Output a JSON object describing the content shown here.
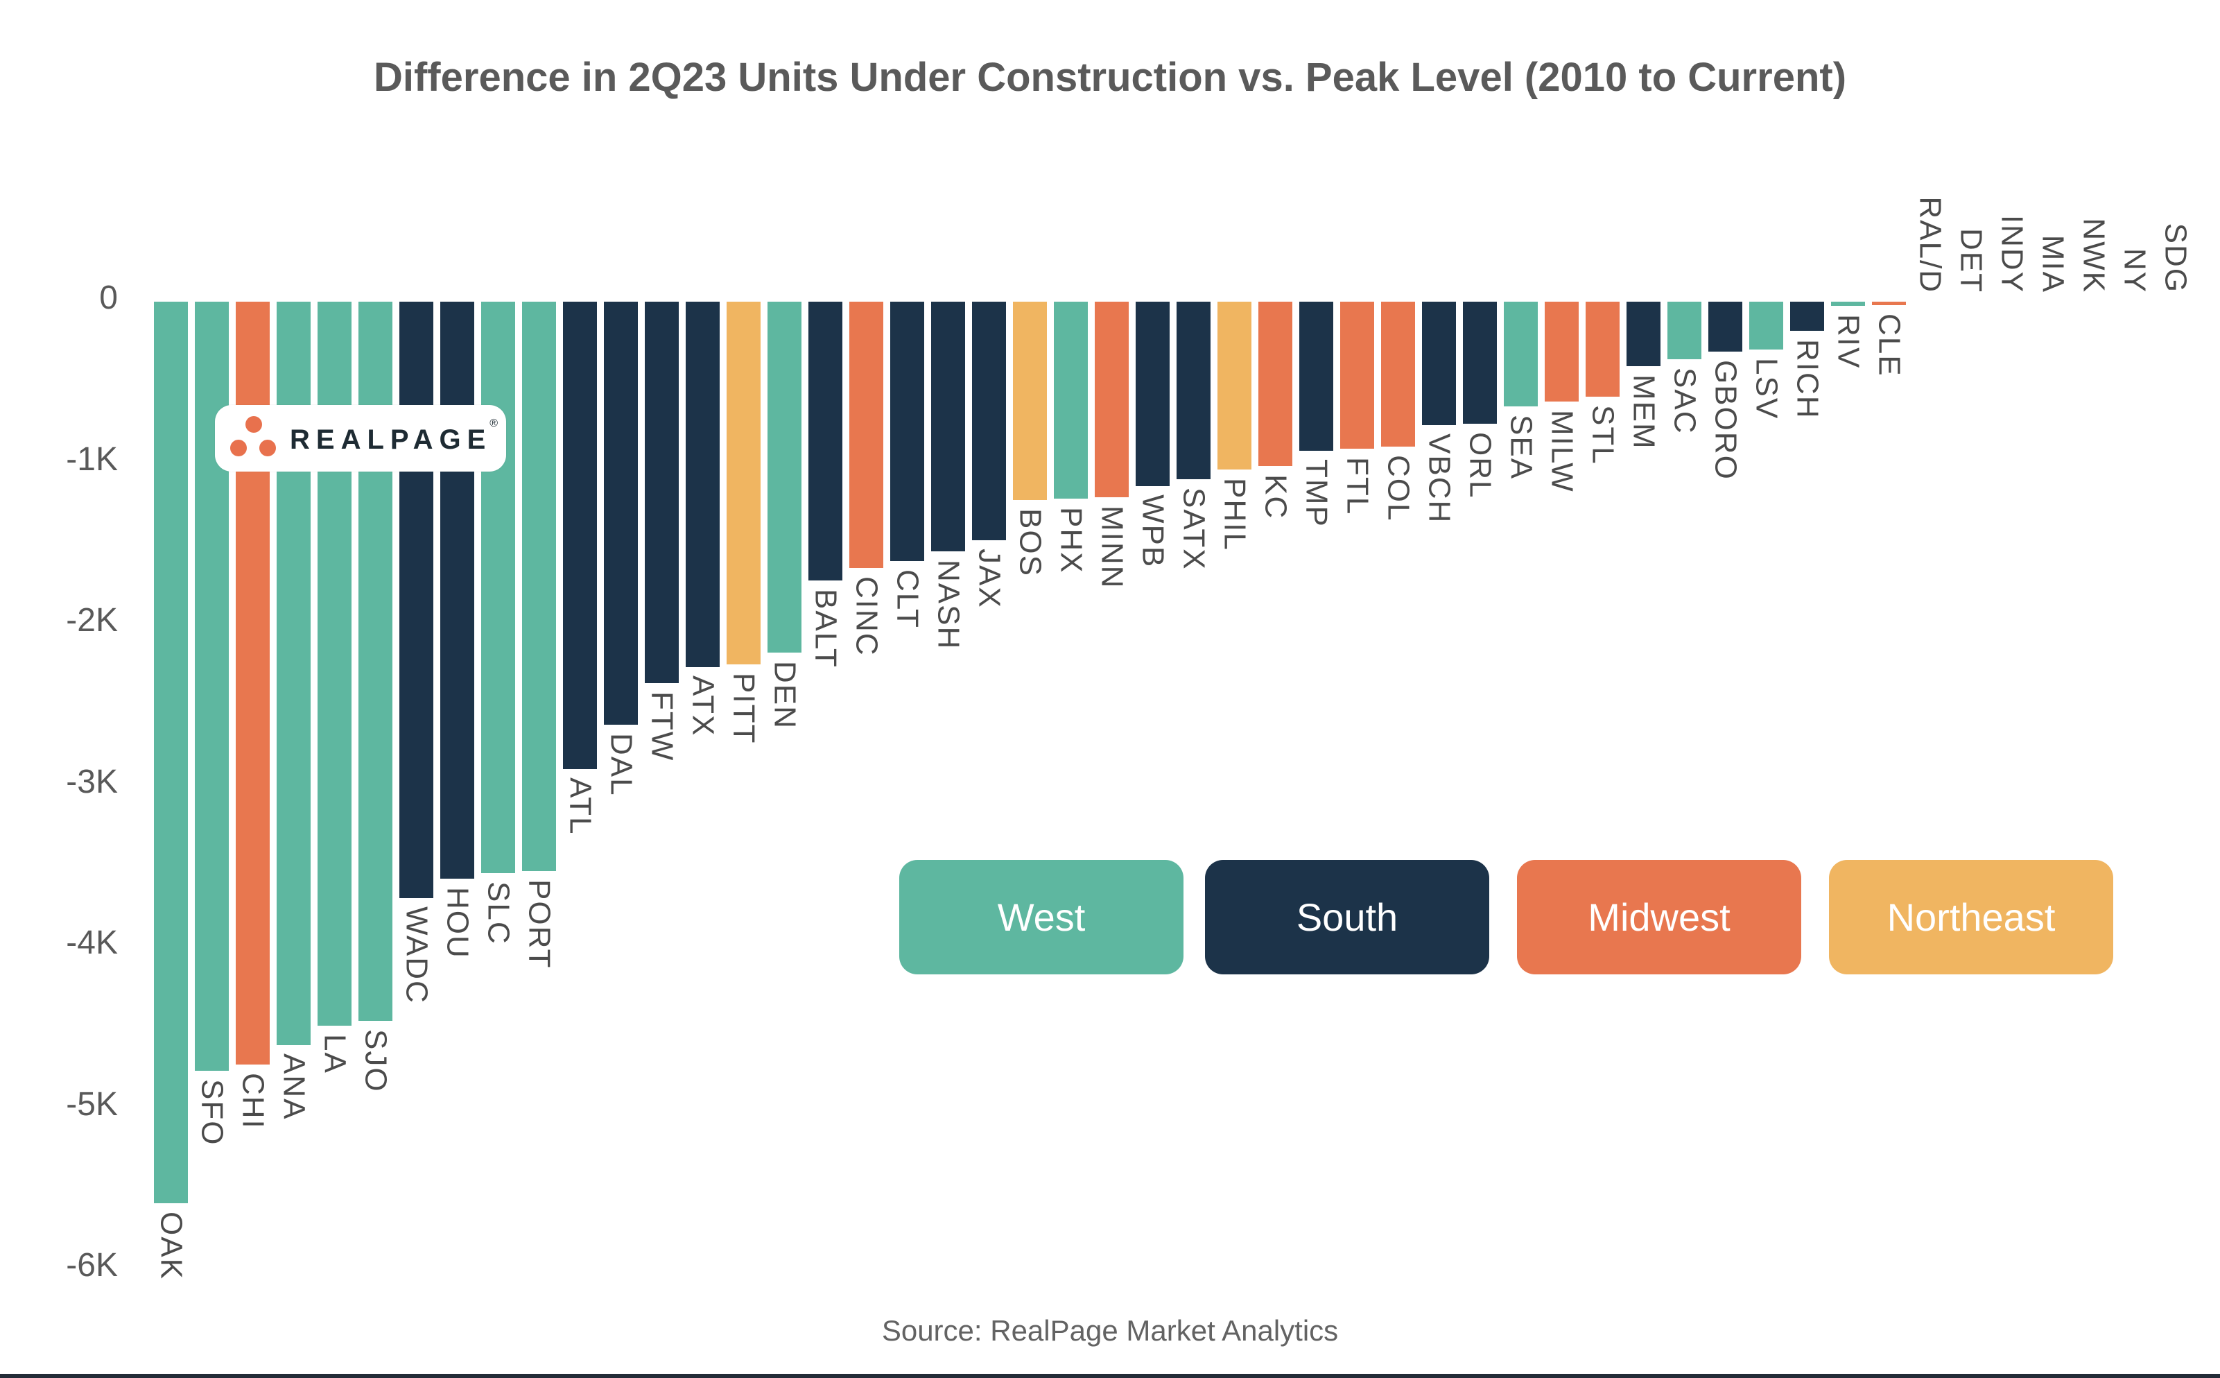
{
  "title": "Difference in 2Q23 Units Under Construction vs. Peak Level (2010 to Current)",
  "source": {
    "text": "Source: RealPage Market Analytics"
  },
  "watermark": {
    "brand": "REALPAGE",
    "reg": "®"
  },
  "y_axis": {
    "ticks": [
      "0",
      "-1K",
      "-2K",
      "-3K",
      "-4K",
      "-5K",
      "-6K"
    ],
    "tick_values": [
      0,
      -1000,
      -2000,
      -3000,
      -4000,
      -5000,
      -6000
    ]
  },
  "legend": {
    "items": [
      {
        "label": "West",
        "color": "#5EB7A0"
      },
      {
        "label": "South",
        "color": "#1C3349"
      },
      {
        "label": "Midwest",
        "color": "#E8774F"
      },
      {
        "label": "Northeast",
        "color": "#F0B561"
      }
    ]
  },
  "chart_data": {
    "type": "bar",
    "title": "Difference in 2Q23 Units Under Construction vs. Peak Level (2010 to Current)",
    "xlabel": "",
    "ylabel": "",
    "ylim": [
      -6200,
      0
    ],
    "grid": false,
    "legend_position": "center-right",
    "region_colors": {
      "West": "#5EB7A0",
      "South": "#1C3349",
      "Midwest": "#E8774F",
      "Northeast": "#F0B561"
    },
    "bars": [
      {
        "label": "OAK",
        "region": "West",
        "value": -5590
      },
      {
        "label": "SFO",
        "region": "West",
        "value": -4770
      },
      {
        "label": "CHI",
        "region": "Midwest",
        "value": -4730
      },
      {
        "label": "ANA",
        "region": "West",
        "value": -4610
      },
      {
        "label": "LA",
        "region": "West",
        "value": -4490
      },
      {
        "label": "SJO",
        "region": "West",
        "value": -4460
      },
      {
        "label": "WADC",
        "region": "South",
        "value": -3700
      },
      {
        "label": "HOU",
        "region": "South",
        "value": -3580
      },
      {
        "label": "SLC",
        "region": "West",
        "value": -3545
      },
      {
        "label": "PORT",
        "region": "West",
        "value": -3530
      },
      {
        "label": "ATL",
        "region": "South",
        "value": -2900
      },
      {
        "label": "DAL",
        "region": "South",
        "value": -2625
      },
      {
        "label": "FTW",
        "region": "South",
        "value": -2365
      },
      {
        "label": "ATX",
        "region": "South",
        "value": -2265
      },
      {
        "label": "PITT",
        "region": "Northeast",
        "value": -2250
      },
      {
        "label": "DEN",
        "region": "West",
        "value": -2175
      },
      {
        "label": "BALT",
        "region": "South",
        "value": -1730
      },
      {
        "label": "CINC",
        "region": "Midwest",
        "value": -1650
      },
      {
        "label": "CLT",
        "region": "South",
        "value": -1610
      },
      {
        "label": "NASH",
        "region": "South",
        "value": -1550
      },
      {
        "label": "JAX",
        "region": "South",
        "value": -1480
      },
      {
        "label": "BOS",
        "region": "Northeast",
        "value": -1230
      },
      {
        "label": "PHX",
        "region": "West",
        "value": -1220
      },
      {
        "label": "MINN",
        "region": "Midwest",
        "value": -1215
      },
      {
        "label": "WPB",
        "region": "South",
        "value": -1145
      },
      {
        "label": "SATX",
        "region": "South",
        "value": -1100
      },
      {
        "label": "PHIL",
        "region": "Northeast",
        "value": -1040
      },
      {
        "label": "KC",
        "region": "Midwest",
        "value": -1020
      },
      {
        "label": "TMP",
        "region": "South",
        "value": -925
      },
      {
        "label": "FTL",
        "region": "Midwest",
        "value": -910
      },
      {
        "label": "COL",
        "region": "Midwest",
        "value": -900
      },
      {
        "label": "VBCH",
        "region": "South",
        "value": -765
      },
      {
        "label": "ORL",
        "region": "South",
        "value": -755
      },
      {
        "label": "SEA",
        "region": "West",
        "value": -650
      },
      {
        "label": "MILW",
        "region": "Midwest",
        "value": -620
      },
      {
        "label": "STL",
        "region": "Midwest",
        "value": -590
      },
      {
        "label": "MEM",
        "region": "South",
        "value": -400
      },
      {
        "label": "SAC",
        "region": "West",
        "value": -355
      },
      {
        "label": "GBORO",
        "region": "South",
        "value": -310
      },
      {
        "label": "LSV",
        "region": "West",
        "value": -295
      },
      {
        "label": "RICH",
        "region": "South",
        "value": -180
      },
      {
        "label": "RIV",
        "region": "West",
        "value": -25
      },
      {
        "label": "CLE",
        "region": "Midwest",
        "value": -20
      },
      {
        "label": "RAL/D",
        "region": "South",
        "value": 0
      },
      {
        "label": "DET",
        "region": "Midwest",
        "value": 0
      },
      {
        "label": "INDY",
        "region": "Midwest",
        "value": 0
      },
      {
        "label": "MIA",
        "region": "South",
        "value": 0
      },
      {
        "label": "NWK",
        "region": "Northeast",
        "value": 0
      },
      {
        "label": "NY",
        "region": "Northeast",
        "value": 0
      },
      {
        "label": "SDG",
        "region": "West",
        "value": 0
      }
    ]
  },
  "logo": {
    "dot_color": "#E8714D"
  }
}
